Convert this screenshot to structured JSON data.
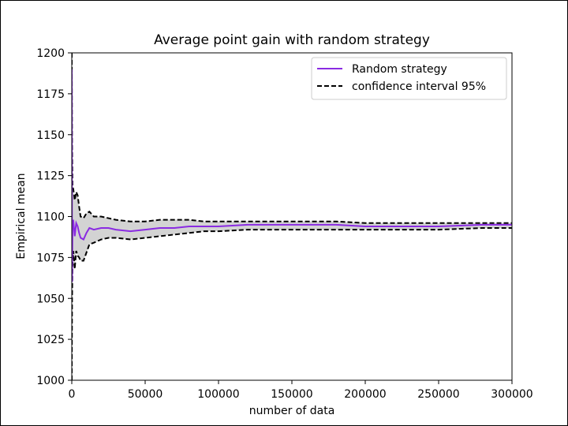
{
  "chart_data": {
    "type": "line",
    "title": "Average point gain with random strategy",
    "xlabel": "number of data",
    "ylabel": "Empirical mean",
    "xlim": [
      0,
      300000
    ],
    "ylim": [
      1000,
      1200
    ],
    "xticks": [
      0,
      50000,
      100000,
      150000,
      200000,
      250000,
      300000
    ],
    "yticks": [
      1000,
      1025,
      1050,
      1075,
      1100,
      1125,
      1150,
      1175,
      1200
    ],
    "legend_position": "top-right",
    "grid": false,
    "colors": {
      "mean": "#8a2be2",
      "ci": "#000000",
      "fill": "#d3d3d3"
    },
    "series": [
      {
        "name": "Random strategy",
        "style": "solid",
        "x": [
          0,
          200,
          500,
          1000,
          2000,
          3000,
          4000,
          5000,
          6000,
          8000,
          10000,
          12000,
          15000,
          20000,
          25000,
          30000,
          40000,
          50000,
          60000,
          70000,
          80000,
          90000,
          100000,
          120000,
          150000,
          180000,
          200000,
          220000,
          250000,
          280000,
          300000
        ],
        "y": [
          1190,
          1060,
          1095,
          1098,
          1088,
          1096,
          1094,
          1090,
          1087,
          1086,
          1090,
          1093,
          1092,
          1093,
          1093,
          1092,
          1091,
          1092,
          1093,
          1093,
          1094,
          1094,
          1094,
          1095,
          1095,
          1095,
          1094,
          1094,
          1094,
          1095,
          1095
        ]
      },
      {
        "name": "confidence interval 95%",
        "style": "dashed",
        "upper": {
          "x": [
            0,
            200,
            500,
            1000,
            2000,
            3000,
            4000,
            5000,
            6000,
            8000,
            10000,
            12000,
            15000,
            20000,
            25000,
            30000,
            40000,
            50000,
            60000,
            70000,
            80000,
            90000,
            100000,
            120000,
            150000,
            180000,
            200000,
            220000,
            250000,
            280000,
            300000
          ],
          "y": [
            1200,
            1145,
            1118,
            1117,
            1110,
            1115,
            1113,
            1106,
            1100,
            1099,
            1102,
            1103,
            1100,
            1100,
            1099,
            1098,
            1097,
            1097,
            1098,
            1098,
            1098,
            1097,
            1097,
            1097,
            1097,
            1097,
            1096,
            1096,
            1096,
            1096,
            1096
          ]
        },
        "lower": {
          "x": [
            0,
            200,
            500,
            1000,
            2000,
            3000,
            4000,
            5000,
            6000,
            8000,
            10000,
            12000,
            15000,
            20000,
            25000,
            30000,
            40000,
            50000,
            60000,
            70000,
            80000,
            90000,
            100000,
            120000,
            150000,
            180000,
            200000,
            220000,
            250000,
            280000,
            300000
          ],
          "y": [
            1000,
            1050,
            1070,
            1079,
            1068,
            1079,
            1076,
            1075,
            1073,
            1073,
            1078,
            1083,
            1084,
            1086,
            1087,
            1087,
            1086,
            1087,
            1088,
            1089,
            1090,
            1091,
            1091,
            1092,
            1092,
            1092,
            1092,
            1092,
            1092,
            1093,
            1093
          ]
        }
      }
    ]
  }
}
